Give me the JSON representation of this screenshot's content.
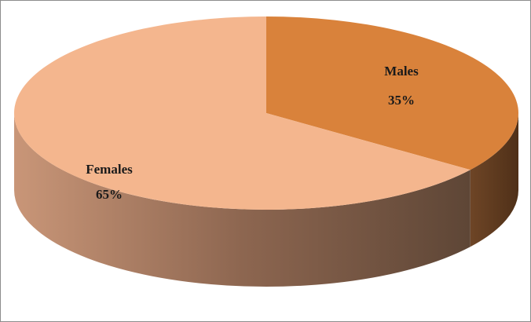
{
  "chart_data": {
    "type": "pie",
    "style": "3d",
    "slices": [
      {
        "name": "Males",
        "value": 35,
        "label": "35%",
        "color": "#D9823B"
      },
      {
        "name": "Females",
        "value": 65,
        "label": "65%",
        "color": "#F4B68E"
      }
    ]
  }
}
